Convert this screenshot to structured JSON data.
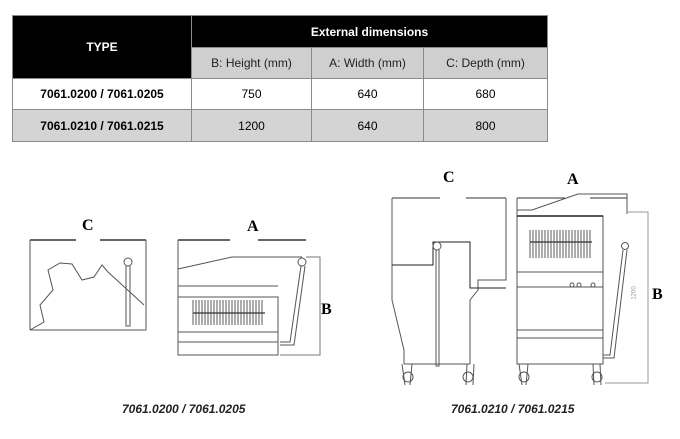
{
  "table": {
    "type_header": "TYPE",
    "group_header": "External dimensions",
    "columns": [
      "B: Height (mm)",
      "A: Width (mm)",
      "C: Depth (mm)"
    ],
    "rows": [
      {
        "type": "7061.0200 / 7061.0205",
        "height": "750",
        "width": "640",
        "depth": "680"
      },
      {
        "type": "7061.0210 / 7061.0215",
        "height": "1200",
        "width": "640",
        "depth": "800"
      }
    ]
  },
  "drawings": {
    "small": {
      "label_c": "C",
      "label_a": "A",
      "label_b": "B",
      "caption": "7061.0200 / 7061.0205"
    },
    "large": {
      "label_c": "C",
      "label_a": "A",
      "label_b": "B",
      "dim_text": "1200",
      "caption": "7061.0210 / 7061.0215"
    }
  }
}
